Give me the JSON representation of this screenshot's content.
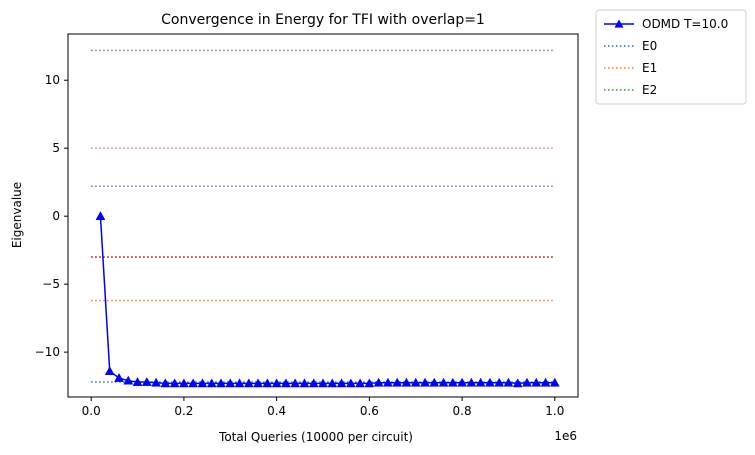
{
  "chart_data": {
    "type": "line",
    "title": "Convergence in Energy for TFI with overlap=1",
    "xlabel": "Total Queries (10000 per circuit)",
    "ylabel": "Eigenvalue",
    "x_offset_label": "1e6",
    "x_scale": 1000000,
    "xlim": [
      -50000,
      1050000
    ],
    "ylim": [
      -13.3,
      13.4
    ],
    "x_ticks": [
      0,
      200000,
      400000,
      600000,
      800000,
      1000000
    ],
    "x_tick_labels": [
      "0.0",
      "0.2",
      "0.4",
      "0.6",
      "0.8",
      "1.0"
    ],
    "y_ticks": [
      -10,
      -5,
      0,
      5,
      10
    ],
    "y_tick_labels": [
      "−10",
      "−5",
      "0",
      "5",
      "10"
    ],
    "grid": false,
    "legend_position": "outside-top-right",
    "series": [
      {
        "name": "ODMD T=10.0",
        "kind": "line-marker",
        "marker": "triangle-up",
        "color": "#0000ff",
        "x": [
          20000,
          40000,
          60000,
          80000,
          100000,
          120000,
          140000,
          160000,
          180000,
          200000,
          220000,
          240000,
          260000,
          280000,
          300000,
          320000,
          340000,
          360000,
          380000,
          400000,
          420000,
          440000,
          460000,
          480000,
          500000,
          520000,
          540000,
          560000,
          580000,
          600000,
          620000,
          640000,
          660000,
          680000,
          700000,
          720000,
          740000,
          760000,
          780000,
          800000,
          820000,
          840000,
          860000,
          880000,
          900000,
          920000,
          940000,
          960000,
          980000,
          1000000
        ],
        "y": [
          0.0,
          -11.4,
          -11.9,
          -12.1,
          -12.2,
          -12.2,
          -12.25,
          -12.3,
          -12.3,
          -12.3,
          -12.3,
          -12.3,
          -12.3,
          -12.3,
          -12.3,
          -12.3,
          -12.3,
          -12.3,
          -12.3,
          -12.3,
          -12.3,
          -12.3,
          -12.3,
          -12.3,
          -12.3,
          -12.3,
          -12.3,
          -12.3,
          -12.3,
          -12.3,
          -12.25,
          -12.25,
          -12.25,
          -12.25,
          -12.25,
          -12.25,
          -12.25,
          -12.25,
          -12.25,
          -12.25,
          -12.25,
          -12.25,
          -12.25,
          -12.25,
          -12.25,
          -12.3,
          -12.25,
          -12.25,
          -12.25,
          -12.25
        ]
      },
      {
        "name": "E0",
        "kind": "hline",
        "color": "#1f77b4",
        "y": -12.2,
        "x_range": [
          0,
          1000000
        ]
      },
      {
        "name": "E1",
        "kind": "hline",
        "color": "#ff7f0e",
        "y": -6.2,
        "x_range": [
          0,
          1000000
        ]
      },
      {
        "name": "E2",
        "kind": "hline",
        "color": "#2ca02c",
        "y": -3.0,
        "x_range": [
          0,
          1000000
        ]
      },
      {
        "kind": "hline",
        "color": "#d62728",
        "y": -3.0,
        "x_range": [
          0,
          1000000
        ]
      },
      {
        "kind": "hline",
        "color": "#9467bd",
        "y": 2.2,
        "x_range": [
          0,
          1000000
        ]
      },
      {
        "kind": "hline",
        "color": "#e377c2",
        "y": 5.0,
        "x_range": [
          0,
          1000000
        ]
      },
      {
        "kind": "hline",
        "color": "#7f7f7f",
        "y": 12.2,
        "x_range": [
          0,
          1000000
        ]
      }
    ]
  }
}
